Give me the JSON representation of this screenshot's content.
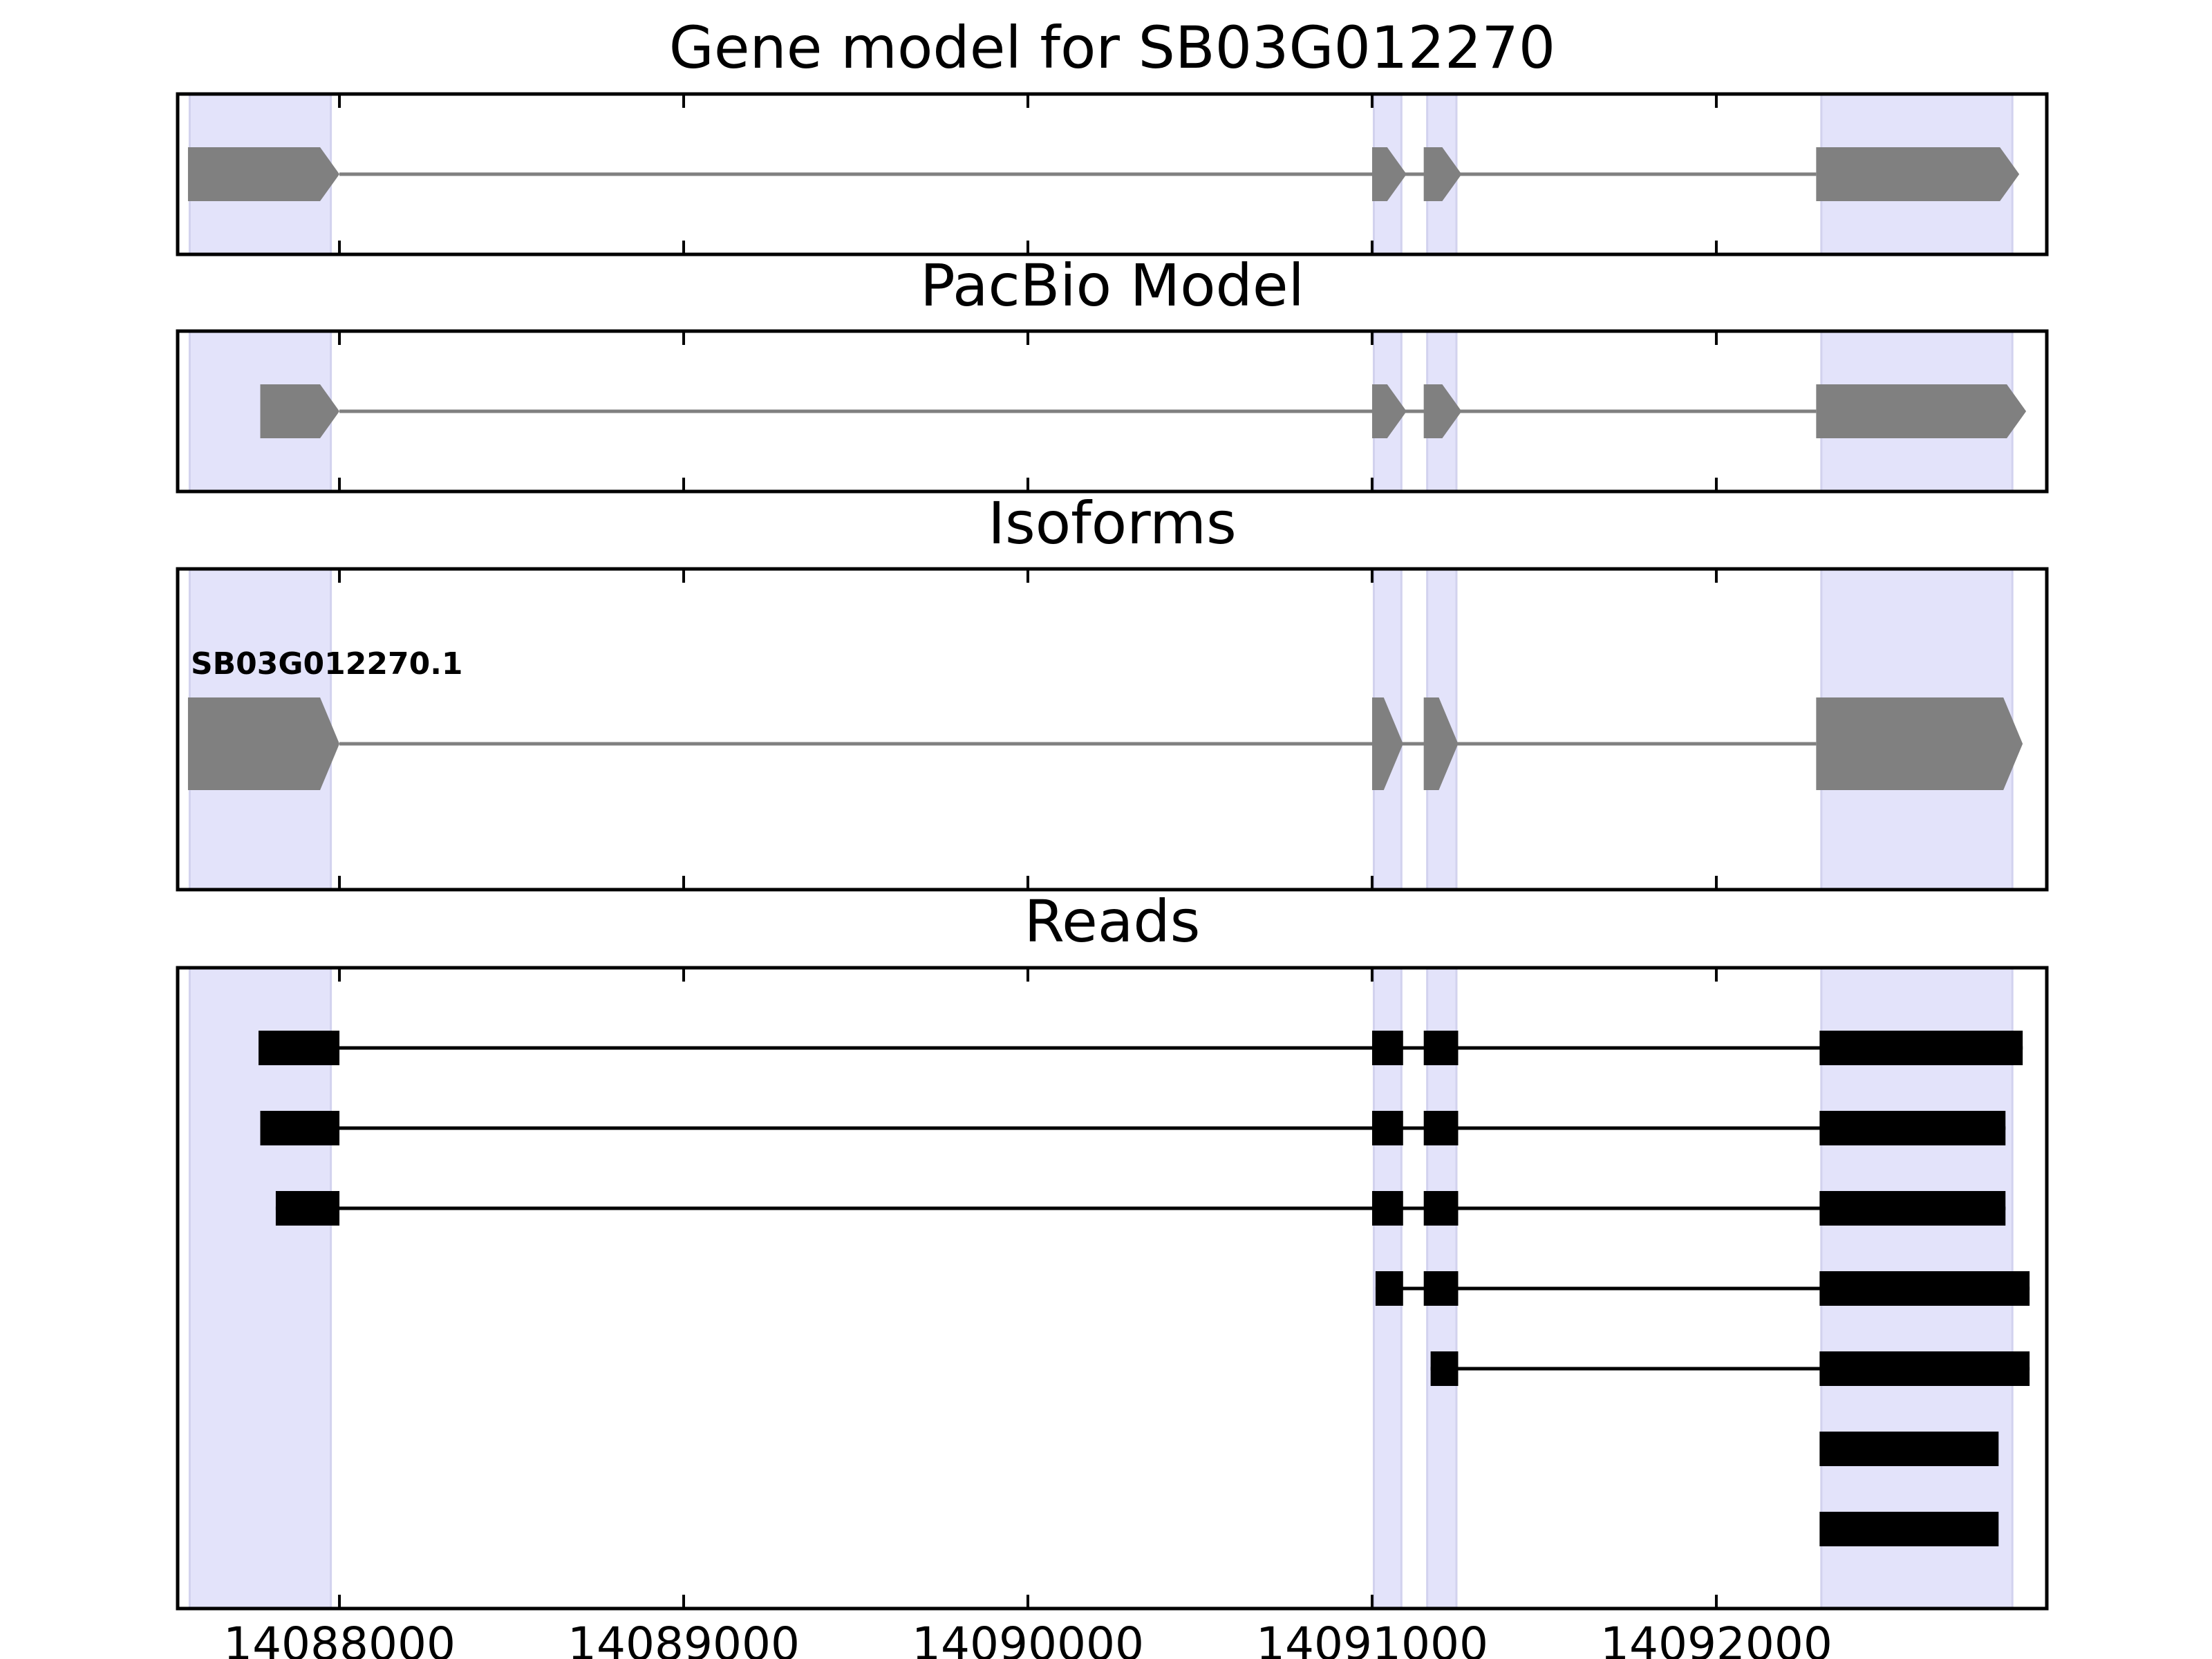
{
  "chart_data": {
    "type": "gene_model",
    "x_axis": {
      "xlim": [
        14087530,
        14092960
      ],
      "ticks": [
        14088000,
        14089000,
        14090000,
        14091000,
        14092000
      ],
      "tick_labels": [
        "14088000",
        "14089000",
        "14090000",
        "14091000",
        "14092000"
      ]
    },
    "highlight_regions": [
      [
        14087565,
        14087975
      ],
      [
        14091005,
        14091085
      ],
      [
        14091160,
        14091245
      ],
      [
        14092305,
        14092860
      ]
    ],
    "colors": {
      "highlight": "#e3e3fa",
      "gene_feature": "#808080",
      "read_feature": "#000000"
    },
    "panels": [
      {
        "id": "gene-model",
        "title": "Gene model for SB03G012270",
        "tracks": [
          {
            "label": "",
            "strand": "+",
            "exons": [
              [
                14087560,
                14088000
              ],
              [
                14091000,
                14091100
              ],
              [
                14091150,
                14091260
              ],
              [
                14092290,
                14092880
              ]
            ]
          }
        ]
      },
      {
        "id": "pacbio-model",
        "title": "PacBio Model",
        "tracks": [
          {
            "label": "",
            "strand": "+",
            "exons": [
              [
                14087770,
                14088000
              ],
              [
                14091000,
                14091100
              ],
              [
                14091150,
                14091260
              ],
              [
                14092290,
                14092900
              ]
            ]
          }
        ]
      },
      {
        "id": "isoforms",
        "title": "Isoforms",
        "tracks": [
          {
            "label": "SB03G012270.1",
            "strand": "+",
            "exons": [
              [
                14087560,
                14088000
              ],
              [
                14091000,
                14091090
              ],
              [
                14091150,
                14091250
              ],
              [
                14092290,
                14092890
              ]
            ]
          }
        ]
      },
      {
        "id": "reads",
        "title": "Reads",
        "reads": [
          {
            "exons": [
              [
                14087765,
                14088000
              ],
              [
                14091000,
                14091090
              ],
              [
                14091150,
                14091250
              ],
              [
                14092300,
                14092890
              ]
            ]
          },
          {
            "exons": [
              [
                14087770,
                14088000
              ],
              [
                14091000,
                14091090
              ],
              [
                14091150,
                14091250
              ],
              [
                14092300,
                14092840
              ]
            ]
          },
          {
            "exons": [
              [
                14087815,
                14088000
              ],
              [
                14091000,
                14091090
              ],
              [
                14091150,
                14091250
              ],
              [
                14092300,
                14092840
              ]
            ]
          },
          {
            "exons": [
              [
                14091010,
                14091090
              ],
              [
                14091150,
                14091250
              ],
              [
                14092300,
                14092910
              ]
            ]
          },
          {
            "exons": [
              [
                14091170,
                14091250
              ],
              [
                14092300,
                14092910
              ]
            ]
          },
          {
            "exons": [
              [
                14092300,
                14092820
              ]
            ]
          },
          {
            "exons": [
              [
                14092300,
                14092820
              ]
            ]
          }
        ]
      }
    ]
  }
}
